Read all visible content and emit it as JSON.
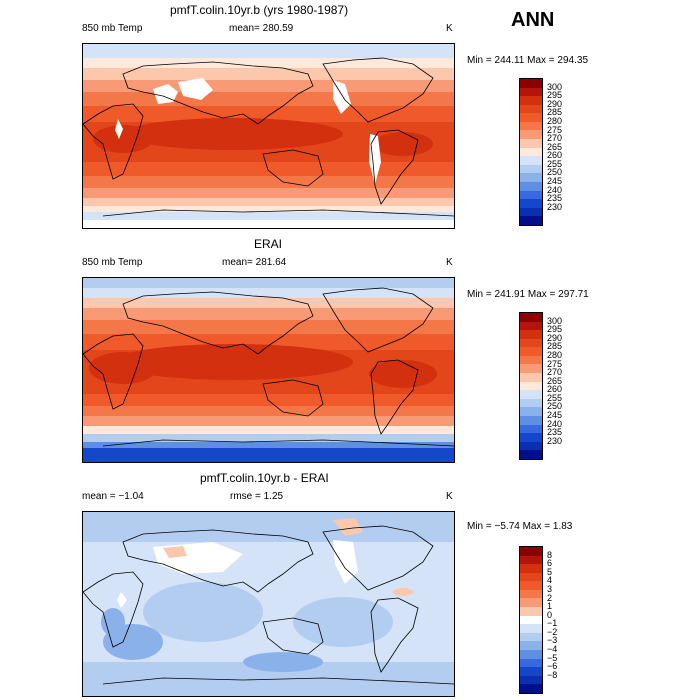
{
  "season": "ANN",
  "panels": [
    {
      "title": "pmfT.colin.10yr.b (yrs 1980-1987)",
      "left_label": "850 mb Temp",
      "center_label": "mean= 280.59",
      "right_label": "K",
      "minmax": "Min = 244.11  Max = 294.35",
      "levels": [
        "300",
        "295",
        "290",
        "285",
        "280",
        "275",
        "270",
        "265",
        "260",
        "255",
        "250",
        "245",
        "240",
        "235",
        "230"
      ],
      "colors": [
        "#8b0000",
        "#b3150d",
        "#d2300f",
        "#e4461c",
        "#f05a2a",
        "#f4774a",
        "#f79a75",
        "#fbc8ad",
        "#fde9dc",
        "#d4e3f7",
        "#b3cdf1",
        "#8bb1ea",
        "#5f8fe3",
        "#3869df",
        "#1447cc",
        "#0a2fb0",
        "#000f8a"
      ]
    },
    {
      "title": "ERAI",
      "left_label": "850 mb Temp",
      "center_label": "mean= 281.64",
      "right_label": "K",
      "minmax": "Min = 241.91  Max = 297.71",
      "levels": [
        "300",
        "295",
        "290",
        "285",
        "280",
        "275",
        "270",
        "265",
        "260",
        "255",
        "250",
        "245",
        "240",
        "235",
        "230"
      ],
      "colors": [
        "#8b0000",
        "#b3150d",
        "#d2300f",
        "#e4461c",
        "#f05a2a",
        "#f4774a",
        "#f79a75",
        "#fbc8ad",
        "#fde9dc",
        "#d4e3f7",
        "#b3cdf1",
        "#8bb1ea",
        "#5f8fe3",
        "#3869df",
        "#1447cc",
        "#0a2fb0",
        "#000f8a"
      ]
    },
    {
      "title": "pmfT.colin.10yr.b - ERAI",
      "left_label": "mean =   −1.04",
      "center_label": "rmse =   1.25",
      "right_label": "K",
      "minmax": "Min =  −5.74  Max =   1.83",
      "levels": [
        "8",
        "6",
        "5",
        "4",
        "3",
        "2",
        "1",
        "0",
        "−1",
        "−2",
        "−3",
        "−4",
        "−5",
        "−6",
        "−8"
      ],
      "colors": [
        "#8b0000",
        "#b3150d",
        "#d2300f",
        "#e4461c",
        "#f05a2a",
        "#f4774a",
        "#f79a75",
        "#fbc8ad",
        "#ffffff",
        "#d4e3f7",
        "#b3cdf1",
        "#8bb1ea",
        "#5f8fe3",
        "#3869df",
        "#1447cc",
        "#0a2fb0",
        "#000f8a"
      ]
    }
  ]
}
